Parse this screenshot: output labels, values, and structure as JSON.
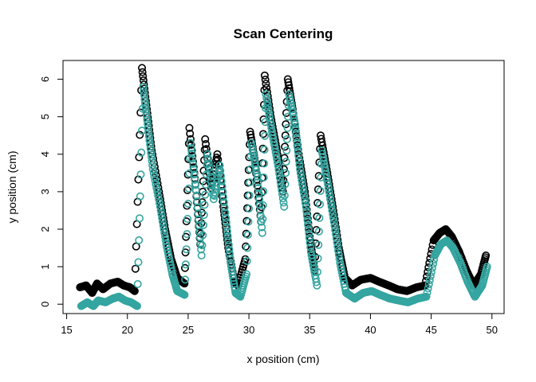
{
  "chart_data": {
    "type": "scatter",
    "title": "Scan Centering",
    "xlabel": "x position (cm)",
    "ylabel": "y position (cm)",
    "xlim": [
      14.7,
      51.0
    ],
    "ylim": [
      -0.25,
      6.5
    ],
    "x_ticks": [
      15,
      20,
      25,
      30,
      35,
      40,
      45,
      50
    ],
    "y_ticks": [
      0,
      1,
      2,
      3,
      4,
      5,
      6
    ],
    "grid": false,
    "legend": "none",
    "series": [
      {
        "color": "#000000",
        "marker": "open-circle",
        "points": [
          [
            16.1,
            0.45
          ],
          [
            16.6,
            0.5
          ],
          [
            17.1,
            0.3
          ],
          [
            17.5,
            0.55
          ],
          [
            18.0,
            0.4
          ],
          [
            18.6,
            0.55
          ],
          [
            19.2,
            0.6
          ],
          [
            19.7,
            0.5
          ],
          [
            20.2,
            0.45
          ],
          [
            20.6,
            0.35
          ],
          [
            21.2,
            6.3
          ],
          [
            21.6,
            5.2
          ],
          [
            22.0,
            4.1
          ],
          [
            22.6,
            3.0
          ],
          [
            23.1,
            2.0
          ],
          [
            23.6,
            1.2
          ],
          [
            24.1,
            0.7
          ],
          [
            24.7,
            0.55
          ],
          [
            25.1,
            4.7
          ],
          [
            25.6,
            3.2
          ],
          [
            26.0,
            1.6
          ],
          [
            26.4,
            4.4
          ],
          [
            26.9,
            3.1
          ],
          [
            27.4,
            4.0
          ],
          [
            27.9,
            2.6
          ],
          [
            28.3,
            1.5
          ],
          [
            28.8,
            0.6
          ],
          [
            29.1,
            0.5
          ],
          [
            29.7,
            1.2
          ],
          [
            30.1,
            4.6
          ],
          [
            30.5,
            3.8
          ],
          [
            31.0,
            2.2
          ],
          [
            31.3,
            6.1
          ],
          [
            31.8,
            5.0
          ],
          [
            32.3,
            4.1
          ],
          [
            32.8,
            3.0
          ],
          [
            33.2,
            6.0
          ],
          [
            33.6,
            5.2
          ],
          [
            34.1,
            4.0
          ],
          [
            34.6,
            3.0
          ],
          [
            35.0,
            1.8
          ],
          [
            35.4,
            0.9
          ],
          [
            35.9,
            4.5
          ],
          [
            36.4,
            3.6
          ],
          [
            36.9,
            2.6
          ],
          [
            37.4,
            1.5
          ],
          [
            37.9,
            0.7
          ],
          [
            38.5,
            0.5
          ],
          [
            39.2,
            0.65
          ],
          [
            40.0,
            0.7
          ],
          [
            40.7,
            0.6
          ],
          [
            41.5,
            0.5
          ],
          [
            42.2,
            0.4
          ],
          [
            43.0,
            0.35
          ],
          [
            43.8,
            0.45
          ],
          [
            44.5,
            0.5
          ],
          [
            45.2,
            1.7
          ],
          [
            45.7,
            1.9
          ],
          [
            46.2,
            2.0
          ],
          [
            46.7,
            1.8
          ],
          [
            47.3,
            1.4
          ],
          [
            47.9,
            0.9
          ],
          [
            48.5,
            0.5
          ],
          [
            49.1,
            0.8
          ],
          [
            49.5,
            1.3
          ]
        ]
      },
      {
        "color": "#34a5a0",
        "marker": "open-circle",
        "points": [
          [
            16.2,
            -0.05
          ],
          [
            16.7,
            0.05
          ],
          [
            17.2,
            -0.05
          ],
          [
            17.6,
            0.1
          ],
          [
            18.2,
            0.05
          ],
          [
            18.8,
            0.15
          ],
          [
            19.3,
            0.2
          ],
          [
            19.8,
            0.1
          ],
          [
            20.3,
            0.05
          ],
          [
            20.8,
            -0.05
          ],
          [
            21.3,
            5.8
          ],
          [
            21.7,
            4.7
          ],
          [
            22.1,
            3.6
          ],
          [
            22.7,
            2.6
          ],
          [
            23.2,
            1.6
          ],
          [
            23.7,
            0.8
          ],
          [
            24.1,
            0.35
          ],
          [
            24.7,
            0.25
          ],
          [
            25.2,
            4.3
          ],
          [
            25.7,
            2.9
          ],
          [
            26.1,
            1.3
          ],
          [
            26.6,
            4.0
          ],
          [
            27.1,
            2.8
          ],
          [
            27.6,
            3.7
          ],
          [
            28.1,
            2.3
          ],
          [
            28.5,
            1.1
          ],
          [
            28.9,
            0.3
          ],
          [
            29.3,
            0.2
          ],
          [
            29.8,
            0.8
          ],
          [
            30.2,
            4.3
          ],
          [
            30.7,
            3.4
          ],
          [
            31.1,
            1.9
          ],
          [
            31.4,
            5.6
          ],
          [
            31.9,
            4.6
          ],
          [
            32.4,
            3.7
          ],
          [
            32.9,
            2.6
          ],
          [
            33.3,
            5.6
          ],
          [
            33.8,
            4.8
          ],
          [
            34.2,
            3.6
          ],
          [
            34.7,
            2.6
          ],
          [
            35.1,
            1.4
          ],
          [
            35.6,
            0.5
          ],
          [
            36.0,
            4.1
          ],
          [
            36.5,
            3.2
          ],
          [
            37.0,
            2.2
          ],
          [
            37.5,
            1.1
          ],
          [
            38.0,
            0.3
          ],
          [
            38.7,
            0.15
          ],
          [
            39.4,
            0.3
          ],
          [
            40.1,
            0.35
          ],
          [
            40.8,
            0.25
          ],
          [
            41.6,
            0.15
          ],
          [
            42.3,
            0.1
          ],
          [
            43.1,
            0.05
          ],
          [
            43.9,
            0.15
          ],
          [
            44.6,
            0.2
          ],
          [
            45.3,
            1.3
          ],
          [
            45.8,
            1.6
          ],
          [
            46.3,
            1.7
          ],
          [
            46.8,
            1.5
          ],
          [
            47.4,
            1.1
          ],
          [
            48.0,
            0.6
          ],
          [
            48.6,
            0.2
          ],
          [
            49.2,
            0.5
          ],
          [
            49.6,
            1.0
          ]
        ]
      }
    ]
  }
}
